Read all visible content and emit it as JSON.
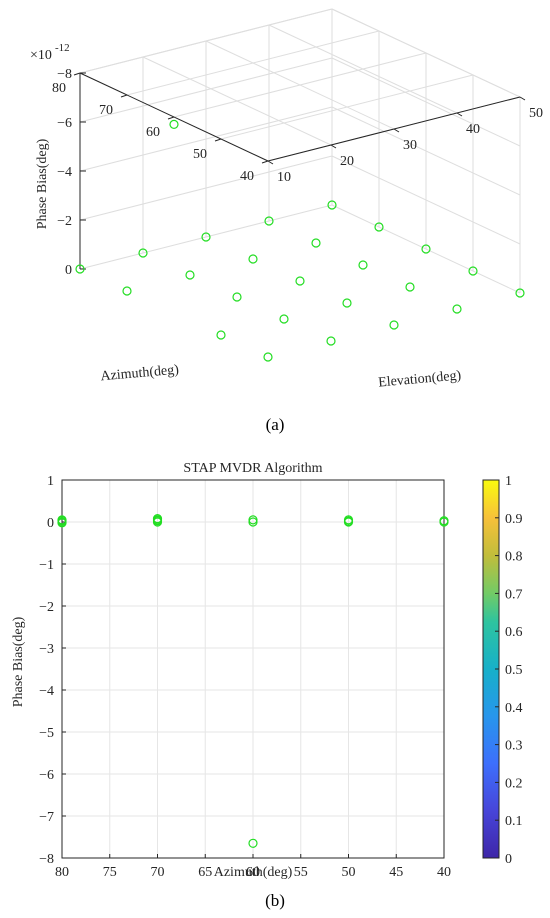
{
  "chart_data": [
    {
      "type": "scatter",
      "projection": "3d",
      "subfigure_label": "(a)",
      "xlabel": "Azimuth(deg)",
      "ylabel": "Elevation(deg)",
      "zlabel": "Phase Bias(deg)",
      "z_exponent_label": "×10",
      "z_exponent_value": "-12",
      "x_ticks": [
        40,
        50,
        60,
        70,
        80
      ],
      "y_ticks": [
        10,
        20,
        30,
        40,
        50
      ],
      "z_ticks": [
        0,
        -2,
        -4,
        -6,
        -8
      ],
      "xlim": [
        40,
        80
      ],
      "ylim": [
        10,
        50
      ],
      "zlim": [
        -8,
        0
      ],
      "grid": true,
      "marker": "circle",
      "marker_color": "#22dd22",
      "points": [
        {
          "x": 80,
          "y": 10,
          "z": 0
        },
        {
          "x": 80,
          "y": 20,
          "z": 0
        },
        {
          "x": 80,
          "y": 30,
          "z": 0
        },
        {
          "x": 80,
          "y": 40,
          "z": 0
        },
        {
          "x": 80,
          "y": 50,
          "z": 0
        },
        {
          "x": 70,
          "y": 10,
          "z": 0
        },
        {
          "x": 70,
          "y": 20,
          "z": 0
        },
        {
          "x": 70,
          "y": 30,
          "z": 0
        },
        {
          "x": 70,
          "y": 40,
          "z": 0
        },
        {
          "x": 70,
          "y": 50,
          "z": 0
        },
        {
          "x": 60,
          "y": 10,
          "z": -7.7
        },
        {
          "x": 60,
          "y": 20,
          "z": 0
        },
        {
          "x": 60,
          "y": 30,
          "z": 0
        },
        {
          "x": 60,
          "y": 40,
          "z": 0
        },
        {
          "x": 60,
          "y": 50,
          "z": 0
        },
        {
          "x": 50,
          "y": 10,
          "z": 0
        },
        {
          "x": 50,
          "y": 20,
          "z": 0
        },
        {
          "x": 50,
          "y": 30,
          "z": 0
        },
        {
          "x": 50,
          "y": 40,
          "z": 0
        },
        {
          "x": 50,
          "y": 50,
          "z": 0
        },
        {
          "x": 40,
          "y": 10,
          "z": 0
        },
        {
          "x": 40,
          "y": 20,
          "z": 0
        },
        {
          "x": 40,
          "y": 30,
          "z": 0
        },
        {
          "x": 40,
          "y": 40,
          "z": 0
        },
        {
          "x": 40,
          "y": 50,
          "z": 0
        }
      ]
    },
    {
      "type": "scatter",
      "subfigure_label": "(b)",
      "title": "STAP MVDR Algorithm",
      "xlabel": "Azimuth(deg)",
      "ylabel": "Phase Bias(deg)",
      "xlim": [
        80,
        40
      ],
      "x_reversed": true,
      "ylim": [
        -8,
        1
      ],
      "x_ticks": [
        80,
        75,
        70,
        65,
        60,
        55,
        50,
        45,
        40
      ],
      "y_ticks": [
        1,
        0,
        -1,
        -2,
        -3,
        -4,
        -5,
        -6,
        -7,
        -8
      ],
      "grid": true,
      "marker": "circle",
      "marker_color": "#22dd22",
      "points": [
        {
          "x": 80,
          "y": 0.05
        },
        {
          "x": 80,
          "y": 0.0
        },
        {
          "x": 80,
          "y": -0.02
        },
        {
          "x": 80,
          "y": 0.03
        },
        {
          "x": 70,
          "y": 0.08
        },
        {
          "x": 70,
          "y": 0.03
        },
        {
          "x": 70,
          "y": 0.0
        },
        {
          "x": 70,
          "y": 0.05
        },
        {
          "x": 60,
          "y": 0.05
        },
        {
          "x": 60,
          "y": 0.0
        },
        {
          "x": 60,
          "y": -7.65
        },
        {
          "x": 50,
          "y": 0.05
        },
        {
          "x": 50,
          "y": 0.0
        },
        {
          "x": 50,
          "y": 0.02
        },
        {
          "x": 40,
          "y": 0.03
        },
        {
          "x": 40,
          "y": 0.0
        }
      ],
      "colorbar": {
        "colormap": "parula",
        "ticks": [
          0,
          0.1,
          0.2,
          0.3,
          0.4,
          0.5,
          0.6,
          0.7,
          0.8,
          0.9,
          1
        ],
        "tick_labels": [
          "0",
          "0.1",
          "0.2",
          "0.3",
          "0.4",
          "0.5",
          "0.6",
          "0.7",
          "0.8",
          "0.9",
          "1"
        ],
        "range": [
          0,
          1
        ]
      }
    }
  ]
}
